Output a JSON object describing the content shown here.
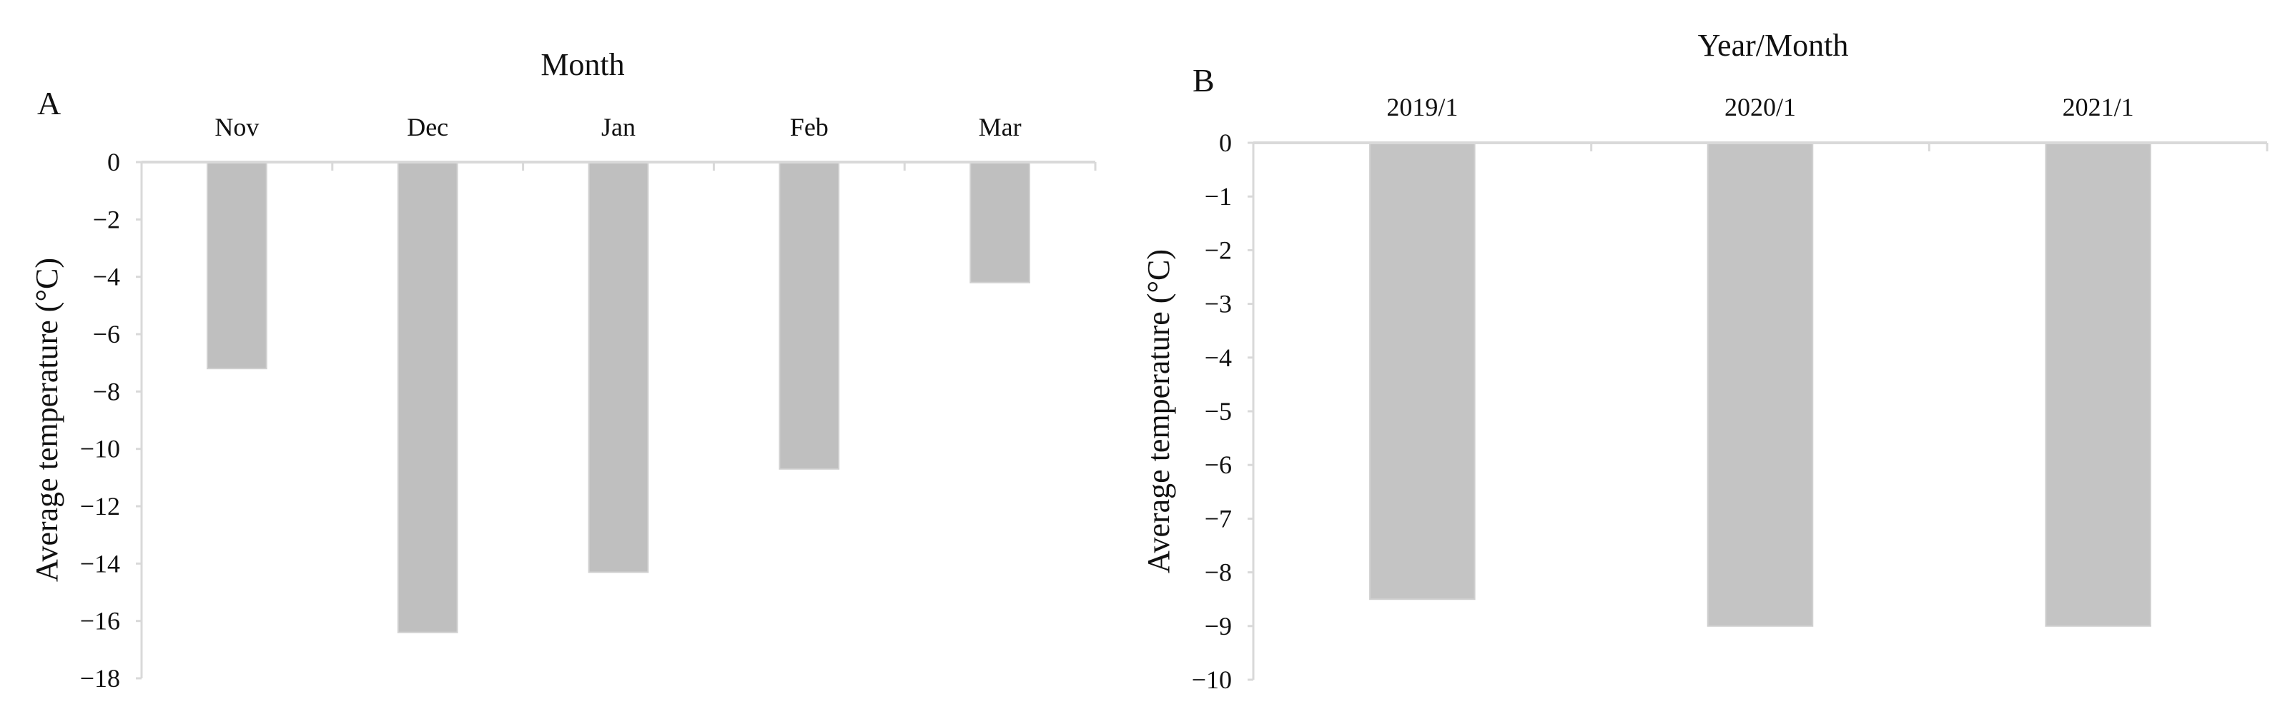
{
  "chart_data": [
    {
      "type": "bar",
      "panel_label": "A",
      "title": "Month",
      "xlabel": "Month",
      "ylabel": "Average temperature (°C)",
      "categories": [
        "Nov",
        "Dec",
        "Jan",
        "Feb",
        "Mar"
      ],
      "values": [
        -7.2,
        -16.4,
        -14.3,
        -10.7,
        -4.2
      ],
      "ylim": [
        -18,
        0
      ],
      "yticks": [
        0,
        -2,
        -4,
        -6,
        -8,
        -10,
        -12,
        -14,
        -16,
        -18
      ],
      "category_axis_position": "top",
      "grid": false,
      "bar_color": "#bfbfbf"
    },
    {
      "type": "bar",
      "panel_label": "B",
      "title": "Year/Month",
      "xlabel": "Year/Month",
      "ylabel": "Average temperature (°C)",
      "categories": [
        "2019/1",
        "2020/1",
        "2021/1"
      ],
      "values": [
        -8.5,
        -9.0,
        -9.0
      ],
      "ylim": [
        -10,
        0
      ],
      "yticks": [
        0,
        -1,
        -2,
        -3,
        -4,
        -5,
        -6,
        -7,
        -8,
        -9,
        -10
      ],
      "category_axis_position": "top",
      "grid": false,
      "bar_color": "#c4c4c4"
    }
  ]
}
